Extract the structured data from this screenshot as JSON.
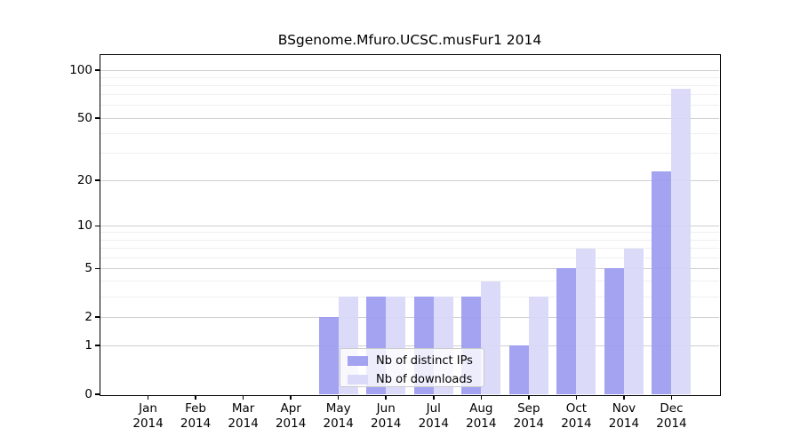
{
  "chart_data": {
    "type": "bar",
    "title": "BSgenome.Mfuro.UCSC.musFur1 2014",
    "x_categories": [
      "Jan",
      "Feb",
      "Mar",
      "Apr",
      "May",
      "Jun",
      "Jul",
      "Aug",
      "Sep",
      "Oct",
      "Nov",
      "Dec"
    ],
    "x_year": "2014",
    "series": [
      {
        "name": "Nb of distinct IPs",
        "color": "#9b9bf0",
        "values": [
          0,
          0,
          0,
          0,
          2,
          3,
          3,
          3,
          1,
          5,
          5,
          23
        ]
      },
      {
        "name": "Nb of downloads",
        "color": "#d8d8f8",
        "values": [
          0,
          0,
          0,
          0,
          3,
          3,
          3,
          4,
          3,
          7,
          7,
          76
        ]
      }
    ],
    "y_scale": "log10(1+x)",
    "y_ticks": [
      100,
      50,
      20,
      10,
      5,
      2,
      1,
      0
    ],
    "y_minor_gridlines": [
      3,
      4,
      6,
      7,
      8,
      9,
      30,
      40,
      60,
      70,
      80,
      90
    ],
    "ylim": [
      0,
      124
    ],
    "grid": true,
    "legend_position": "bottom-center",
    "axis_color": "#000000",
    "major_grid_color": "#cfcfcf",
    "minor_grid_color": "#efefef"
  }
}
